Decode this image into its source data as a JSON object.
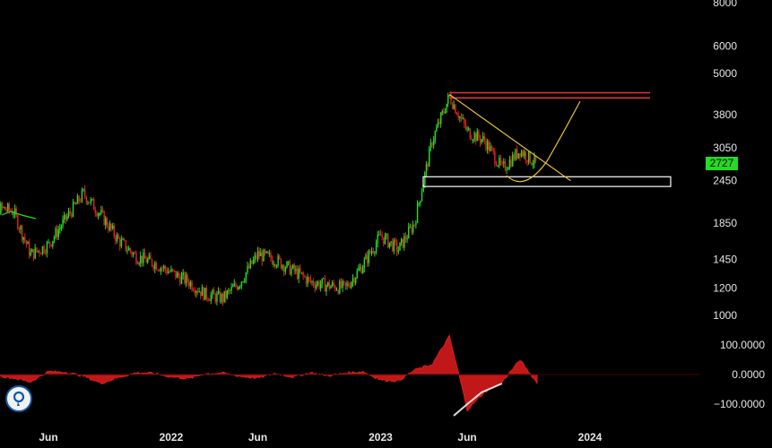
{
  "chart_data": [
    {
      "type": "candlestick",
      "scale": "log",
      "y_ticks": [
        {
          "label": "8000",
          "value": 8000
        },
        {
          "label": "6000",
          "value": 6000
        },
        {
          "label": "5000",
          "value": 5000
        },
        {
          "label": "3800",
          "value": 3800
        },
        {
          "label": "3050",
          "value": 3050
        },
        {
          "label": "2450",
          "value": 2450
        },
        {
          "label": "1850",
          "value": 1850
        },
        {
          "label": "1450",
          "value": 1450
        },
        {
          "label": "1200",
          "value": 1200
        },
        {
          "label": "1000",
          "value": 1000
        }
      ],
      "ylim": [
        1000,
        8000
      ],
      "x_ticks": [
        {
          "label": "Jun",
          "date": "2021-06-01"
        },
        {
          "label": "2022",
          "date": "2022-01-01"
        },
        {
          "label": "Jun",
          "date": "2022-06-01"
        },
        {
          "label": "2023",
          "date": "2023-01-01"
        },
        {
          "label": "Jun",
          "date": "2023-06-01"
        },
        {
          "label": "2024",
          "date": "2024-01-01"
        }
      ],
      "last_price": "2727",
      "colors": {
        "up": "#22dd22",
        "down": "#dd2222",
        "price_tag": "#22dd22"
      },
      "close_series": [
        {
          "date": "2021-02-01",
          "close": 2100
        },
        {
          "date": "2021-04-01",
          "close": 2000
        },
        {
          "date": "2021-05-01",
          "close": 1500
        },
        {
          "date": "2021-06-01",
          "close": 1600
        },
        {
          "date": "2021-07-01",
          "close": 1900
        },
        {
          "date": "2021-08-01",
          "close": 2250
        },
        {
          "date": "2021-09-01",
          "close": 1950
        },
        {
          "date": "2021-10-01",
          "close": 1650
        },
        {
          "date": "2021-11-01",
          "close": 1480
        },
        {
          "date": "2021-12-01",
          "close": 1420
        },
        {
          "date": "2022-01-01",
          "close": 1330
        },
        {
          "date": "2022-02-01",
          "close": 1250
        },
        {
          "date": "2022-03-01",
          "close": 1150
        },
        {
          "date": "2022-04-01",
          "close": 1120
        },
        {
          "date": "2022-05-01",
          "close": 1250
        },
        {
          "date": "2022-06-01",
          "close": 1500
        },
        {
          "date": "2022-07-01",
          "close": 1450
        },
        {
          "date": "2022-08-01",
          "close": 1350
        },
        {
          "date": "2022-09-01",
          "close": 1250
        },
        {
          "date": "2022-10-01",
          "close": 1220
        },
        {
          "date": "2022-11-01",
          "close": 1200
        },
        {
          "date": "2022-12-01",
          "close": 1400
        },
        {
          "date": "2023-01-01",
          "close": 1700
        },
        {
          "date": "2023-02-01",
          "close": 1550
        },
        {
          "date": "2023-03-01",
          "close": 1850
        },
        {
          "date": "2023-04-01",
          "close": 3200
        },
        {
          "date": "2023-05-01",
          "close": 4300
        },
        {
          "date": "2023-06-01",
          "close": 3400
        },
        {
          "date": "2023-07-01",
          "close": 3200
        },
        {
          "date": "2023-08-01",
          "close": 2650
        },
        {
          "date": "2023-09-01",
          "close": 3000
        },
        {
          "date": "2023-10-01",
          "close": 2727
        }
      ],
      "drawings": {
        "resistance_zone": [
          4250,
          4400
        ],
        "support_zone": [
          2400,
          2500
        ],
        "trendline": [
          {
            "date": "2023-05-01",
            "price": 4350
          },
          {
            "date": "2023-10-20",
            "price": 2450
          }
        ],
        "projected_curve_colors": "#e8c23a"
      }
    },
    {
      "type": "area",
      "name": "oscillator",
      "y_ticks": [
        {
          "label": "100.0000",
          "value": 100
        },
        {
          "label": "0.0000",
          "value": 0
        },
        {
          "label": "−100.0000",
          "value": -100
        }
      ],
      "ylim": [
        -100,
        100
      ],
      "values": [
        {
          "date": "2021-02-01",
          "v": 5
        },
        {
          "date": "2021-04-01",
          "v": -12
        },
        {
          "date": "2021-05-01",
          "v": -25
        },
        {
          "date": "2021-06-01",
          "v": 10
        },
        {
          "date": "2021-07-01",
          "v": 8
        },
        {
          "date": "2021-08-01",
          "v": -5
        },
        {
          "date": "2021-09-01",
          "v": -30
        },
        {
          "date": "2021-10-01",
          "v": -10
        },
        {
          "date": "2021-11-01",
          "v": 6
        },
        {
          "date": "2021-12-01",
          "v": 4
        },
        {
          "date": "2022-01-01",
          "v": -8
        },
        {
          "date": "2022-02-01",
          "v": -14
        },
        {
          "date": "2022-03-01",
          "v": 3
        },
        {
          "date": "2022-04-01",
          "v": 5
        },
        {
          "date": "2022-05-01",
          "v": -6
        },
        {
          "date": "2022-06-01",
          "v": -12
        },
        {
          "date": "2022-07-01",
          "v": 4
        },
        {
          "date": "2022-08-01",
          "v": -8
        },
        {
          "date": "2022-09-01",
          "v": 6
        },
        {
          "date": "2022-10-01",
          "v": -4
        },
        {
          "date": "2022-11-01",
          "v": 5
        },
        {
          "date": "2022-12-01",
          "v": 10
        },
        {
          "date": "2023-01-01",
          "v": -18
        },
        {
          "date": "2023-02-01",
          "v": -22
        },
        {
          "date": "2023-03-01",
          "v": 15
        },
        {
          "date": "2023-04-01",
          "v": 35
        },
        {
          "date": "2023-05-01",
          "v": 130
        },
        {
          "date": "2023-05-20",
          "v": -20
        },
        {
          "date": "2023-06-01",
          "v": -120
        },
        {
          "date": "2023-07-01",
          "v": -60
        },
        {
          "date": "2023-08-01",
          "v": -25
        },
        {
          "date": "2023-09-01",
          "v": 50
        },
        {
          "date": "2023-10-01",
          "v": -30
        }
      ],
      "fill_color": "#c01818"
    }
  ]
}
